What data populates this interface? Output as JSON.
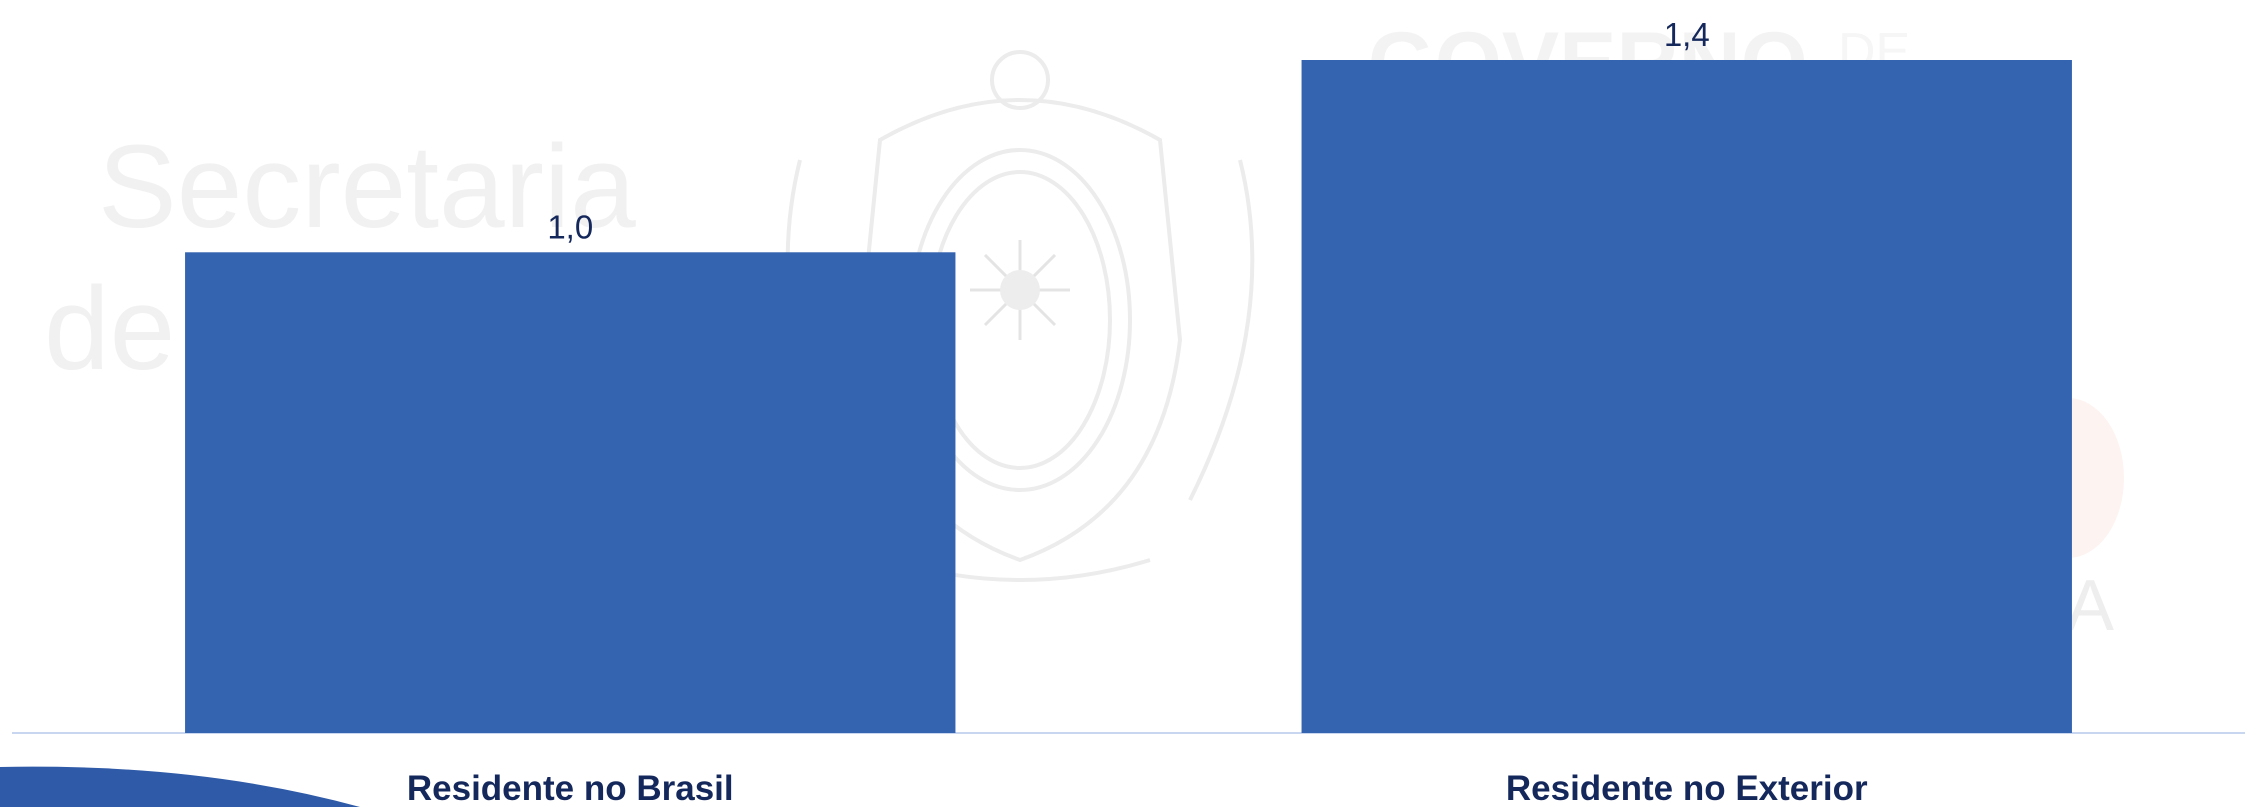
{
  "chart_data": {
    "type": "bar",
    "categories": [
      "Residente no Brasil",
      "Residente no Exterior"
    ],
    "values": [
      1.0,
      1.4
    ],
    "value_labels": [
      "1,0",
      "1,4"
    ],
    "title": "",
    "xlabel": "",
    "ylabel": "",
    "ylim": [
      0,
      1.4
    ],
    "grid": false,
    "legend": "none"
  },
  "colors": {
    "bar": "#3464b0",
    "label_text": "#14285c",
    "baseline": "#c9d6ef",
    "swoosh": "#2e5aa8"
  },
  "watermark": {
    "line1": "Secretaria",
    "line2": "de",
    "governo": "GOVERNO",
    "governo_de": "DE",
    "trailing": "A",
    "seal_icon": "state-coat-of-arms-icon"
  }
}
